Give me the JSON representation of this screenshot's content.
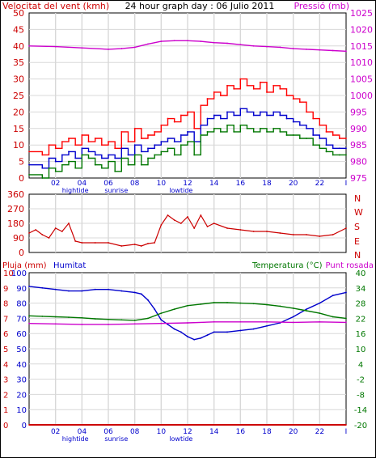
{
  "header": {
    "left_title": "Velocitat del vent (kmh)",
    "center_title": "24 hour graph day : 06 Julio 2011",
    "right_title": "Pressió (mb)"
  },
  "bottom_header": {
    "rain_label": "Pluja (mm)",
    "humidity_label": "Humitat",
    "temp_label": "Temperatura (°C)",
    "dew_label": "Punt rosada"
  },
  "time_axis": {
    "ticks": [
      {
        "x": 2,
        "label": "02"
      },
      {
        "x": 4,
        "label": "04"
      },
      {
        "x": 6,
        "label": "06"
      },
      {
        "x": 8,
        "label": "08"
      },
      {
        "x": 10,
        "label": "10"
      },
      {
        "x": 12,
        "label": "12"
      },
      {
        "x": 14,
        "label": "14"
      },
      {
        "x": 16,
        "label": "16"
      },
      {
        "x": 18,
        "label": "18"
      },
      {
        "x": 20,
        "label": "20"
      },
      {
        "x": 22,
        "label": "22"
      },
      {
        "x": 24,
        "label": "I"
      }
    ],
    "annotations": [
      {
        "x": 3.5,
        "label": "hightide"
      },
      {
        "x": 6.6,
        "label": "sunrise"
      },
      {
        "x": 11.5,
        "label": "lowtide"
      }
    ]
  },
  "colors": {
    "wind_gust": "#ff0000",
    "wind_avg": "#0000cc",
    "wind_low": "#007700",
    "pressure": "#cc00cc",
    "direction": "#cc0000",
    "humidity": "#0000cc",
    "temperature": "#007700",
    "dew": "#cc00cc",
    "rain": "#cc0000",
    "left_axis": "#cc0000",
    "blue_axis": "#0000cc",
    "green_axis": "#007700",
    "grid": "#d8d8d8"
  },
  "chart_data": [
    {
      "type": "line",
      "name": "wind-and-pressure",
      "ylim": [
        0,
        50
      ],
      "y2lim": [
        975,
        1025
      ],
      "yticks": [
        0,
        5,
        10,
        15,
        20,
        25,
        30,
        35,
        40,
        45,
        50
      ],
      "y2ticks": [
        975,
        980,
        985,
        990,
        995,
        1000,
        1005,
        1010,
        1015,
        1020,
        1025
      ],
      "series": [
        {
          "key": "gust",
          "axis": "left",
          "x": [
            0,
            1,
            1.5,
            2,
            2.5,
            3,
            3.5,
            4,
            4.5,
            5,
            5.5,
            6,
            6.5,
            7,
            7.5,
            8,
            8.5,
            9,
            9.5,
            10,
            10.5,
            11,
            11.5,
            12,
            12.5,
            13,
            13.5,
            14,
            14.5,
            15,
            15.5,
            16,
            16.5,
            17,
            17.5,
            18,
            18.5,
            19,
            19.5,
            20,
            20.5,
            21,
            21.5,
            22,
            22.5,
            23,
            23.5,
            24
          ],
          "values": [
            8,
            7,
            10,
            9,
            11,
            12,
            10,
            13,
            11,
            12,
            10,
            11,
            9,
            14,
            11,
            15,
            12,
            13,
            14,
            16,
            18,
            17,
            19,
            20,
            15,
            22,
            24,
            26,
            25,
            28,
            27,
            30,
            28,
            27,
            29,
            26,
            28,
            27,
            25,
            24,
            23,
            20,
            18,
            16,
            14,
            13,
            12,
            12
          ]
        },
        {
          "key": "average",
          "axis": "left",
          "x": [
            0,
            1,
            1.5,
            2,
            2.5,
            3,
            3.5,
            4,
            4.5,
            5,
            5.5,
            6,
            6.5,
            7,
            7.5,
            8,
            8.5,
            9,
            9.5,
            10,
            10.5,
            11,
            11.5,
            12,
            12.5,
            13,
            13.5,
            14,
            14.5,
            15,
            15.5,
            16,
            16.5,
            17,
            17.5,
            18,
            18.5,
            19,
            19.5,
            20,
            20.5,
            21,
            21.5,
            22,
            22.5,
            23,
            23.5,
            24
          ],
          "values": [
            4,
            3,
            6,
            5,
            7,
            8,
            6,
            9,
            8,
            7,
            6,
            7,
            6,
            9,
            7,
            10,
            8,
            9,
            10,
            11,
            12,
            11,
            13,
            14,
            11,
            16,
            18,
            19,
            18,
            20,
            19,
            21,
            20,
            19,
            20,
            19,
            20,
            19,
            18,
            17,
            16,
            15,
            13,
            12,
            10,
            9,
            9,
            9
          ]
        },
        {
          "key": "low",
          "axis": "left",
          "x": [
            0,
            1,
            1.5,
            2,
            2.5,
            3,
            3.5,
            4,
            4.5,
            5,
            5.5,
            6,
            6.5,
            7,
            7.5,
            8,
            8.5,
            9,
            9.5,
            10,
            10.5,
            11,
            11.5,
            12,
            12.5,
            13,
            13.5,
            14,
            14.5,
            15,
            15.5,
            16,
            16.5,
            17,
            17.5,
            18,
            18.5,
            19,
            19.5,
            20,
            20.5,
            21,
            21.5,
            22,
            22.5,
            23,
            23.5,
            24
          ],
          "values": [
            1,
            0,
            3,
            2,
            4,
            5,
            3,
            7,
            6,
            4,
            3,
            5,
            2,
            6,
            4,
            7,
            4,
            6,
            7,
            8,
            9,
            7,
            10,
            11,
            7,
            13,
            14,
            15,
            14,
            16,
            14,
            16,
            15,
            14,
            15,
            14,
            15,
            14,
            13,
            13,
            12,
            12,
            10,
            9,
            8,
            7,
            7,
            7
          ]
        },
        {
          "key": "pressure",
          "axis": "right",
          "x": [
            0,
            2,
            4,
            6,
            7,
            8,
            9,
            10,
            11,
            12,
            13,
            14,
            15,
            16,
            17,
            18,
            19,
            20,
            21,
            22,
            23,
            24
          ],
          "values": [
            1015,
            1014.8,
            1014.4,
            1014,
            1014.2,
            1014.6,
            1015.6,
            1016.4,
            1016.6,
            1016.6,
            1016.4,
            1016,
            1015.8,
            1015.4,
            1015,
            1014.8,
            1014.6,
            1014.2,
            1014,
            1013.8,
            1013.6,
            1013.4
          ]
        }
      ]
    },
    {
      "type": "line",
      "name": "wind-direction",
      "ylim": [
        0,
        360
      ],
      "yticks": [
        0,
        90,
        180,
        270,
        360
      ],
      "right_labels": [
        "N",
        "W",
        "S",
        "E",
        "N"
      ],
      "series": [
        {
          "key": "direction",
          "x": [
            0,
            0.5,
            1,
            1.5,
            2,
            2.5,
            3,
            3.5,
            4,
            5,
            6,
            7,
            8,
            8.5,
            9,
            9.5,
            10,
            10.5,
            11,
            11.5,
            12,
            12.5,
            13,
            13.5,
            14,
            15,
            16,
            17,
            18,
            19,
            20,
            21,
            22,
            23,
            24
          ],
          "values": [
            120,
            140,
            110,
            90,
            150,
            130,
            180,
            70,
            60,
            60,
            60,
            40,
            50,
            40,
            55,
            60,
            170,
            230,
            200,
            180,
            220,
            150,
            230,
            160,
            180,
            150,
            140,
            130,
            130,
            120,
            110,
            110,
            100,
            110,
            150
          ]
        }
      ]
    },
    {
      "type": "line",
      "name": "humidity-temperature-rain",
      "ylim": [
        0,
        100
      ],
      "yticks_rain": [
        0,
        1,
        2,
        3,
        4,
        5,
        6,
        7,
        8,
        9,
        10
      ],
      "yticks_hum": [
        0,
        10,
        20,
        30,
        40,
        50,
        60,
        70,
        80,
        90,
        100
      ],
      "ylim_temp": [
        -20,
        40
      ],
      "yticks_temp": [
        -20,
        -14,
        -8,
        -2,
        4,
        10,
        16,
        22,
        28,
        34,
        40
      ],
      "series": [
        {
          "key": "humidity",
          "axis": "humidity",
          "x": [
            0,
            1,
            2,
            3,
            4,
            5,
            6,
            7,
            8,
            8.5,
            9,
            9.5,
            10,
            10.5,
            11,
            11.5,
            12,
            12.5,
            13,
            13.5,
            14,
            15,
            16,
            17,
            18,
            19,
            20,
            21,
            22,
            23,
            24
          ],
          "values": [
            91,
            90,
            89,
            88,
            88,
            89,
            89,
            88,
            87,
            86,
            82,
            76,
            69,
            66,
            63,
            61,
            58,
            56,
            57,
            59,
            61,
            61,
            62,
            63,
            65,
            67,
            71,
            76,
            80,
            85,
            87
          ]
        },
        {
          "key": "temperature",
          "axis": "temp",
          "x": [
            0,
            1,
            2,
            3,
            4,
            5,
            6,
            7,
            8,
            9,
            10,
            11,
            12,
            13,
            14,
            15,
            16,
            17,
            18,
            19,
            20,
            21,
            22,
            23,
            24
          ],
          "values": [
            23,
            22.8,
            22.6,
            22.4,
            22.2,
            21.8,
            21.6,
            21.4,
            21.2,
            22,
            24,
            25.6,
            27,
            27.6,
            28.2,
            28.2,
            28,
            27.8,
            27.4,
            26.8,
            26,
            25,
            24,
            22.6,
            22
          ]
        },
        {
          "key": "dew",
          "axis": "temp",
          "x": [
            0,
            2,
            4,
            6,
            8,
            10,
            12,
            14,
            16,
            18,
            20,
            22,
            24
          ],
          "values": [
            20,
            19.8,
            19.6,
            19.6,
            19.8,
            20,
            20.2,
            20.6,
            20.6,
            20.6,
            20.4,
            20.6,
            20.4
          ]
        },
        {
          "key": "rain",
          "axis": "rain",
          "x": [
            0,
            24
          ],
          "values": [
            0,
            0
          ]
        }
      ]
    }
  ]
}
